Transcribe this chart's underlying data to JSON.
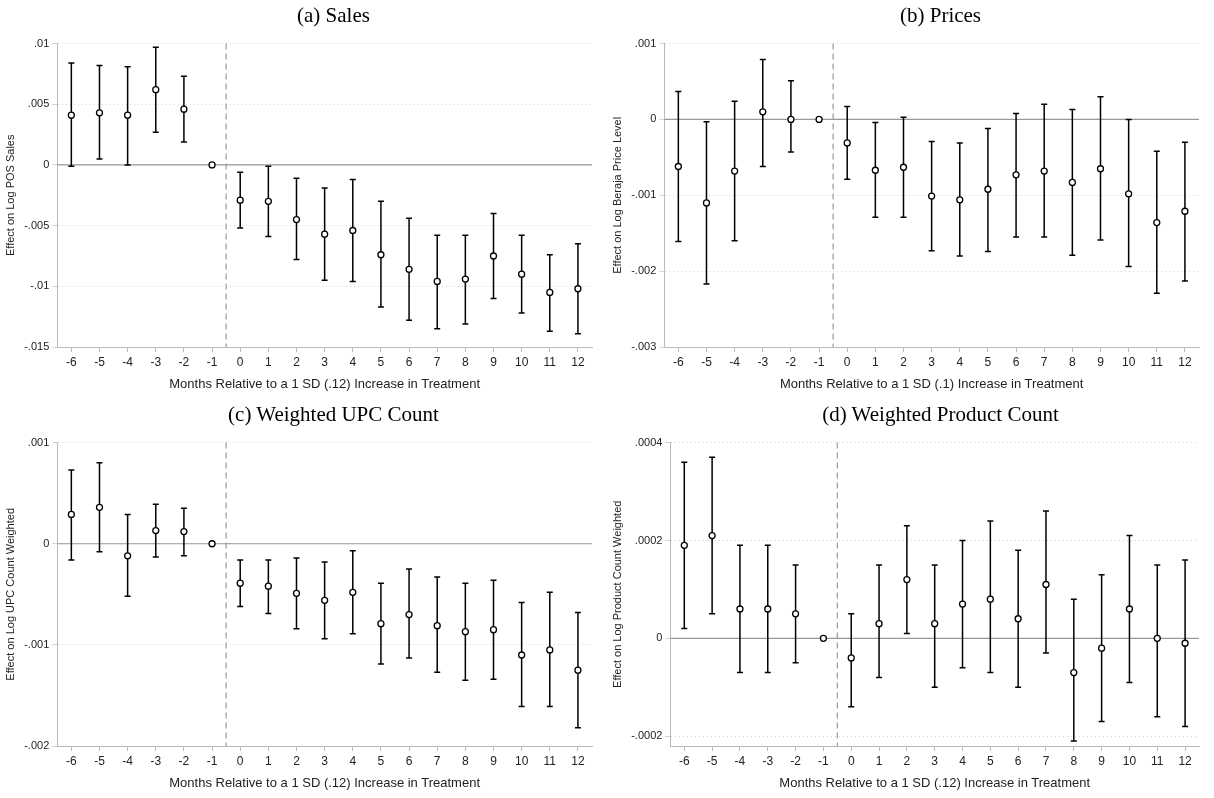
{
  "chart_data": [
    {
      "type": "scatter",
      "title": "(a) Sales",
      "xlabel": "Months Relative to a 1 SD (.12) Increase in Treatment",
      "ylabel": "Effect on Log POS Sales",
      "marker": "circle",
      "grid": "y",
      "color": "#000000",
      "x": [
        -6,
        -5,
        -4,
        -3,
        -2,
        -1,
        0,
        1,
        2,
        3,
        4,
        5,
        6,
        7,
        8,
        9,
        10,
        11,
        12
      ],
      "values": [
        0.0041,
        0.0043,
        0.0041,
        0.0062,
        0.0046,
        0,
        -0.0029,
        -0.003,
        -0.0045,
        -0.0057,
        -0.0054,
        -0.0074,
        -0.0086,
        -0.0096,
        -0.0094,
        -0.0075,
        -0.009,
        -0.0105,
        -0.0102
      ],
      "errors": [
        [
          -0.0001,
          0.0084
        ],
        [
          0.0005,
          0.0082
        ],
        [
          0,
          0.0081
        ],
        [
          0.0027,
          0.0097
        ],
        [
          0.0019,
          0.0073
        ],
        null,
        [
          -0.0052,
          -0.0006
        ],
        [
          -0.0059,
          -0.0001
        ],
        [
          -0.0078,
          -0.0011
        ],
        [
          -0.0095,
          -0.0019
        ],
        [
          -0.0096,
          -0.0012
        ],
        [
          -0.0117,
          -0.003
        ],
        [
          -0.0128,
          -0.0044
        ],
        [
          -0.0135,
          -0.0058
        ],
        [
          -0.0131,
          -0.0058
        ],
        [
          -0.011,
          -0.004
        ],
        [
          -0.0122,
          -0.0058
        ],
        [
          -0.0137,
          -0.0074
        ],
        [
          -0.0139,
          -0.0065
        ]
      ],
      "xlim": [
        -6.5,
        12.5
      ],
      "xticks": [
        -6,
        -5,
        -4,
        -3,
        -2,
        -1,
        0,
        1,
        2,
        3,
        4,
        5,
        6,
        7,
        8,
        9,
        10,
        11,
        12
      ],
      "ylim": [
        -0.015,
        0.01
      ],
      "yticks": [
        {
          "value": -0.015,
          "label": "-.015"
        },
        {
          "value": -0.01,
          "label": "-.01"
        },
        {
          "value": -0.005,
          "label": "-.005"
        },
        {
          "value": 0,
          "label": "0"
        },
        {
          "value": 0.005,
          "label": ".005"
        },
        {
          "value": 0.01,
          "label": ".01"
        }
      ],
      "ref_lines": [
        {
          "axis": "y",
          "value": 0,
          "color": "#999999",
          "line_style": "solid"
        },
        {
          "axis": "x",
          "value": -0.5,
          "color": "#999999",
          "line_style": "dashed"
        }
      ]
    },
    {
      "type": "scatter",
      "title": "(b) Prices",
      "xlabel": "Months Relative to a 1 SD (.1) Increase in Treatment",
      "ylabel": "Effect on Log Beraja Price Level",
      "marker": "circle",
      "grid": "y",
      "color": "#000000",
      "x": [
        -6,
        -5,
        -4,
        -3,
        -2,
        -1,
        0,
        1,
        2,
        3,
        4,
        5,
        6,
        7,
        8,
        9,
        10,
        11,
        12
      ],
      "values": [
        -0.00062,
        -0.0011,
        -0.00068,
        0.0001,
        0,
        0,
        -0.00031,
        -0.00067,
        -0.00063,
        -0.00101,
        -0.00106,
        -0.00092,
        -0.00073,
        -0.00068,
        -0.00083,
        -0.00065,
        -0.00098,
        -0.00136,
        -0.00121
      ],
      "errors": [
        [
          -0.00161,
          0.00037
        ],
        [
          -0.00217,
          -3e-05
        ],
        [
          -0.0016,
          0.00024
        ],
        [
          -0.00062,
          0.00079
        ],
        [
          -0.00043,
          0.00051
        ],
        null,
        [
          -0.00079,
          0.00017
        ],
        [
          -0.00129,
          -4e-05
        ],
        [
          -0.00129,
          3e-05
        ],
        [
          -0.00173,
          -0.00029
        ],
        [
          -0.0018,
          -0.00031
        ],
        [
          -0.00174,
          -0.00012
        ],
        [
          -0.00155,
          8e-05
        ],
        [
          -0.00155,
          0.0002
        ],
        [
          -0.00179,
          0.00013
        ],
        [
          -0.00159,
          0.0003
        ],
        [
          -0.00194,
          0
        ],
        [
          -0.00229,
          -0.00042
        ],
        [
          -0.00213,
          -0.0003
        ]
      ],
      "xlim": [
        -6.5,
        12.5
      ],
      "xticks": [
        -6,
        -5,
        -4,
        -3,
        -2,
        -1,
        0,
        1,
        2,
        3,
        4,
        5,
        6,
        7,
        8,
        9,
        10,
        11,
        12
      ],
      "ylim": [
        -0.003,
        0.001
      ],
      "yticks": [
        {
          "value": -0.003,
          "label": "-.003"
        },
        {
          "value": -0.002,
          "label": "-.002"
        },
        {
          "value": -0.001,
          "label": "-.001"
        },
        {
          "value": 0,
          "label": "0"
        },
        {
          "value": 0.001,
          "label": ".001"
        }
      ],
      "ref_lines": [
        {
          "axis": "y",
          "value": 0,
          "color": "#999999",
          "line_style": "solid"
        },
        {
          "axis": "x",
          "value": -0.5,
          "color": "#999999",
          "line_style": "dashed"
        }
      ]
    },
    {
      "type": "scatter",
      "title": "(c) Weighted UPC Count",
      "xlabel": "Months Relative to a 1 SD (.12) Increase in Treatment",
      "ylabel": "Effect on Log UPC Count Weighted",
      "marker": "circle",
      "grid": "y",
      "color": "#000000",
      "x": [
        -6,
        -5,
        -4,
        -3,
        -2,
        -1,
        0,
        1,
        2,
        3,
        4,
        5,
        6,
        7,
        8,
        9,
        10,
        11,
        12
      ],
      "values": [
        0.00029,
        0.00036,
        -0.00012,
        0.00013,
        0.00012,
        0,
        -0.00039,
        -0.00042,
        -0.00049,
        -0.00056,
        -0.00048,
        -0.00079,
        -0.0007,
        -0.00081,
        -0.00087,
        -0.00085,
        -0.0011,
        -0.00105,
        -0.00125
      ],
      "errors": [
        [
          -0.00016,
          0.00073
        ],
        [
          -8e-05,
          0.0008
        ],
        [
          -0.00052,
          0.00029
        ],
        [
          -0.00013,
          0.00039
        ],
        [
          -0.00012,
          0.00035
        ],
        null,
        [
          -0.00062,
          -0.00016
        ],
        [
          -0.00069,
          -0.00016
        ],
        [
          -0.00084,
          -0.00014
        ],
        [
          -0.00094,
          -0.00018
        ],
        [
          -0.00089,
          -7e-05
        ],
        [
          -0.00119,
          -0.00039
        ],
        [
          -0.00113,
          -0.00025
        ],
        [
          -0.00127,
          -0.00033
        ],
        [
          -0.00135,
          -0.00039
        ],
        [
          -0.00134,
          -0.00036
        ],
        [
          -0.00161,
          -0.00058
        ],
        [
          -0.00161,
          -0.00048
        ],
        [
          -0.00182,
          -0.00068
        ]
      ],
      "xlim": [
        -6.5,
        12.5
      ],
      "xticks": [
        -6,
        -5,
        -4,
        -3,
        -2,
        -1,
        0,
        1,
        2,
        3,
        4,
        5,
        6,
        7,
        8,
        9,
        10,
        11,
        12
      ],
      "ylim": [
        -0.002,
        0.001
      ],
      "yticks": [
        {
          "value": -0.002,
          "label": "-.002"
        },
        {
          "value": -0.001,
          "label": "-.001"
        },
        {
          "value": 0,
          "label": "0"
        },
        {
          "value": 0.001,
          "label": ".001"
        }
      ],
      "ref_lines": [
        {
          "axis": "y",
          "value": 0,
          "color": "#999999",
          "line_style": "solid"
        },
        {
          "axis": "x",
          "value": -0.5,
          "color": "#999999",
          "line_style": "dashed"
        }
      ]
    },
    {
      "type": "scatter",
      "title": "(d) Weighted Product Count",
      "xlabel": "Months Relative to a 1 SD (.12) Increase in Treatment",
      "ylabel": "Effect on Log Product Count Weighted",
      "marker": "circle",
      "grid": "y",
      "color": "#000000",
      "x": [
        -6,
        -5,
        -4,
        -3,
        -2,
        -1,
        0,
        1,
        2,
        3,
        4,
        5,
        6,
        7,
        8,
        9,
        10,
        11,
        12
      ],
      "values": [
        0.00019,
        0.00021,
        6e-05,
        6e-05,
        5e-05,
        0,
        -4e-05,
        3e-05,
        0.00012,
        3e-05,
        7e-05,
        8e-05,
        4e-05,
        0.00011,
        -7e-05,
        -2e-05,
        6e-05,
        0,
        -1e-05
      ],
      "errors": [
        [
          2e-05,
          0.00036
        ],
        [
          5e-05,
          0.00037
        ],
        [
          -7e-05,
          0.00019
        ],
        [
          -7e-05,
          0.00019
        ],
        [
          -5e-05,
          0.00015
        ],
        null,
        [
          -0.00014,
          5e-05
        ],
        [
          -8e-05,
          0.00015
        ],
        [
          1e-05,
          0.00023
        ],
        [
          -0.0001,
          0.00015
        ],
        [
          -6e-05,
          0.0002
        ],
        [
          -7e-05,
          0.00024
        ],
        [
          -0.0001,
          0.00018
        ],
        [
          -3e-05,
          0.00026
        ],
        [
          -0.00021,
          8e-05
        ],
        [
          -0.00017,
          0.00013
        ],
        [
          -9e-05,
          0.00021
        ],
        [
          -0.00016,
          0.00015
        ],
        [
          -0.00018,
          0.00016
        ]
      ],
      "xlim": [
        -6.5,
        12.5
      ],
      "xticks": [
        -6,
        -5,
        -4,
        -3,
        -2,
        -1,
        0,
        1,
        2,
        3,
        4,
        5,
        6,
        7,
        8,
        9,
        10,
        11,
        12
      ],
      "ylim": [
        -0.00022,
        0.0004
      ],
      "yticks": [
        {
          "value": -0.0002,
          "label": "-.0002"
        },
        {
          "value": 0,
          "label": "0"
        },
        {
          "value": 0.0002,
          "label": ".0002"
        },
        {
          "value": 0.0004,
          "label": ".0004"
        }
      ],
      "ref_lines": [
        {
          "axis": "y",
          "value": 0,
          "color": "#999999",
          "line_style": "solid"
        },
        {
          "axis": "x",
          "value": -0.5,
          "color": "#999999",
          "line_style": "dashed"
        }
      ]
    }
  ]
}
